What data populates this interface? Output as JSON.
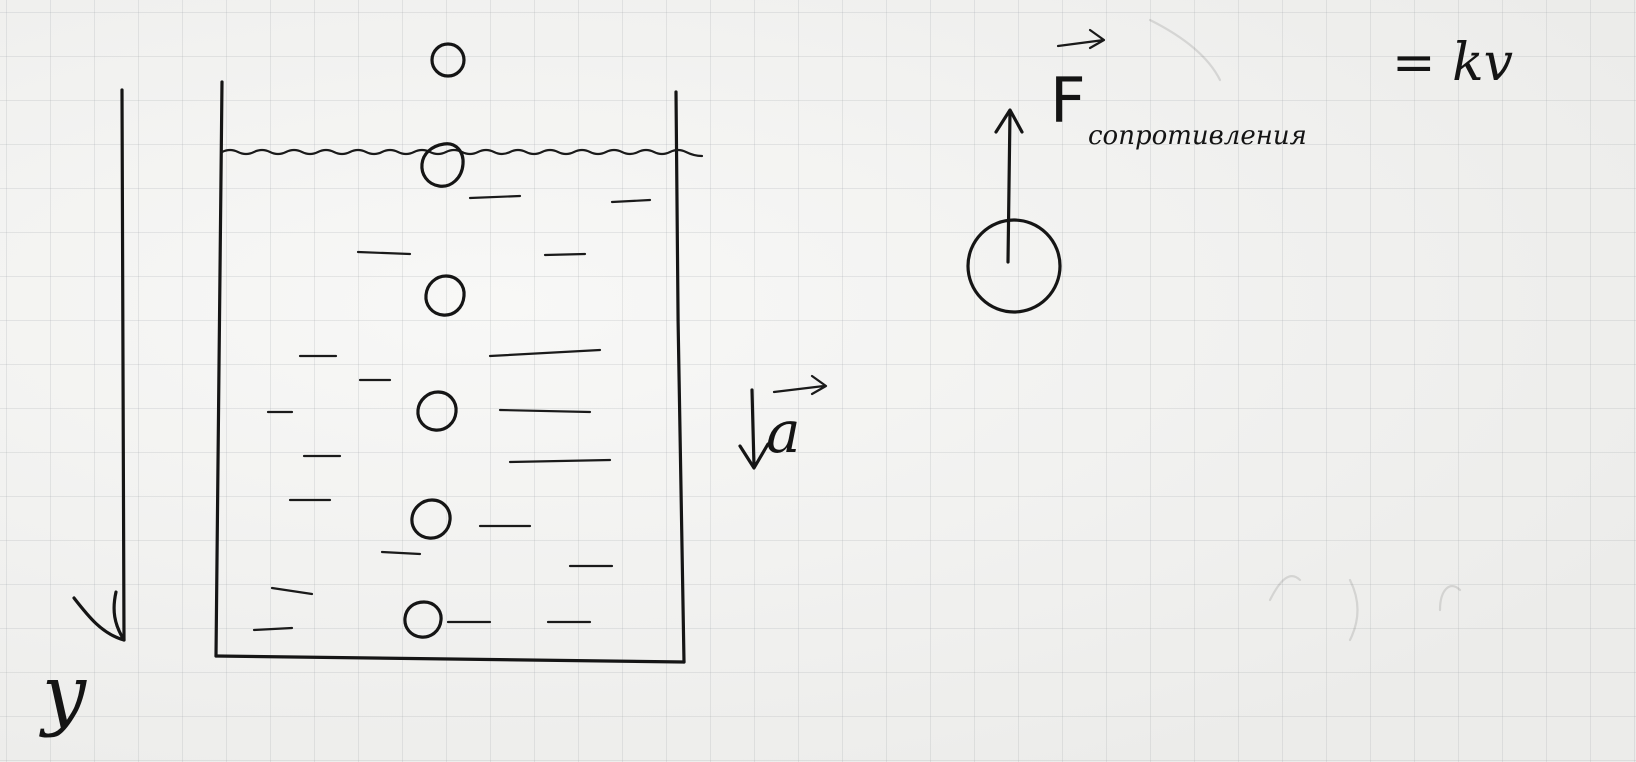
{
  "axis": {
    "label": "y"
  },
  "labels": {
    "acceleration": "a",
    "force_symbol": "F",
    "force_subscript": "сопротивления",
    "formula": "= kv"
  },
  "colors": {
    "ink": "#151515",
    "paper": "#f4f4f2",
    "grid": "#a0a5aa"
  }
}
